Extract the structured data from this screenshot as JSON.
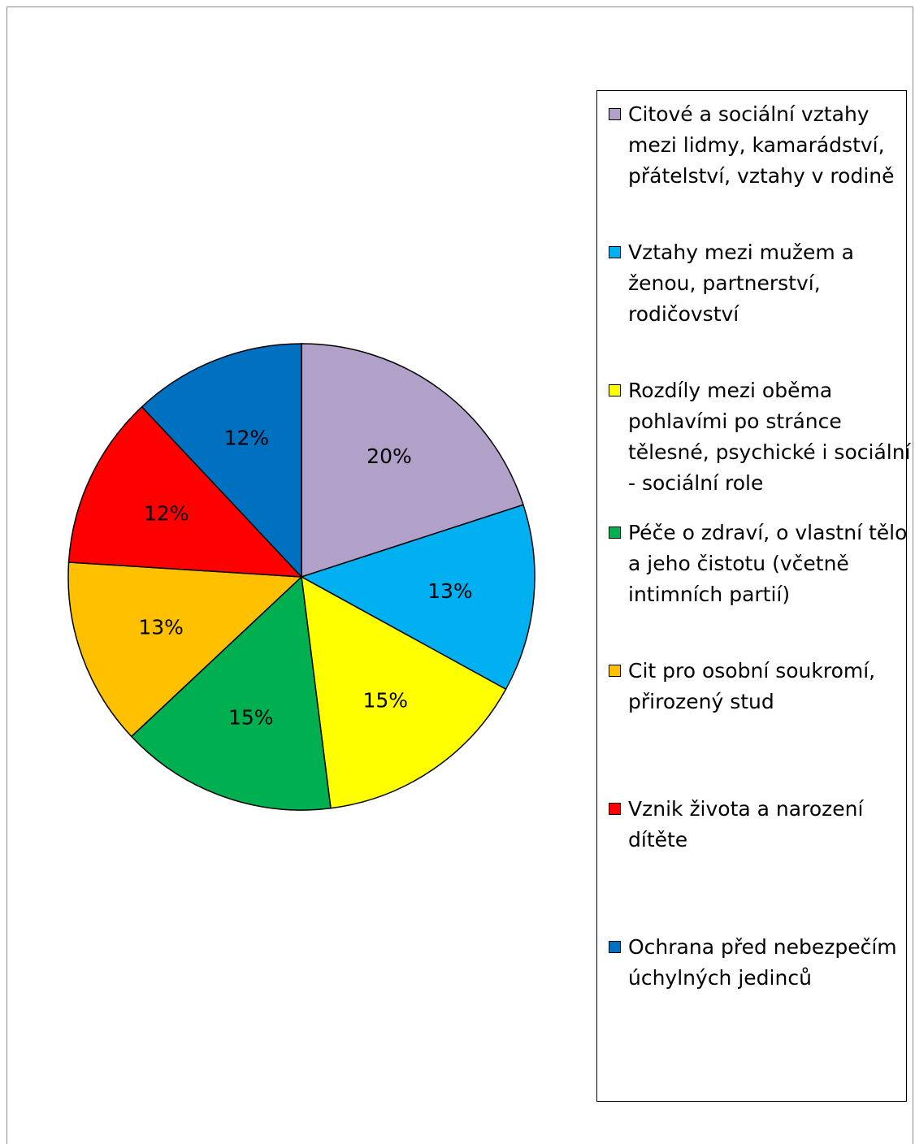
{
  "chart_data": {
    "type": "pie",
    "start_angle_deg": 0,
    "direction": "clockwise",
    "slices": [
      {
        "label": "Citové a sociální vztahy mezi lidmy, kamarádství, přátelství, vztahy v rodině",
        "value": 20,
        "display": "20%",
        "color": "#B1A0C7"
      },
      {
        "label": "Vztahy mezi mužem a ženou, partnerství, rodičovství",
        "value": 13,
        "display": "13%",
        "color": "#00B0F0"
      },
      {
        "label": "Rozdíly mezi oběma pohlavími po stránce tělesné, psychické i sociální - sociální role",
        "value": 15,
        "display": "15%",
        "color": "#FFFF00"
      },
      {
        "label": "Péče o zdraví, o vlastní tělo a jeho čistotu (včetně intimních partií)",
        "value": 15,
        "display": "15%",
        "color": "#00B050"
      },
      {
        "label": "Cit pro osobní soukromí, přirozený stud",
        "value": 13,
        "display": "13%",
        "color": "#FFC000"
      },
      {
        "label": "Vznik života a narození dítěte",
        "value": 12,
        "display": "12%",
        "color": "#FF0000"
      },
      {
        "label": "Ochrana před nebezpečím úchylných jedinců",
        "value": 12,
        "display": "12%",
        "color": "#0070C0"
      }
    ],
    "legend_position": "right"
  }
}
